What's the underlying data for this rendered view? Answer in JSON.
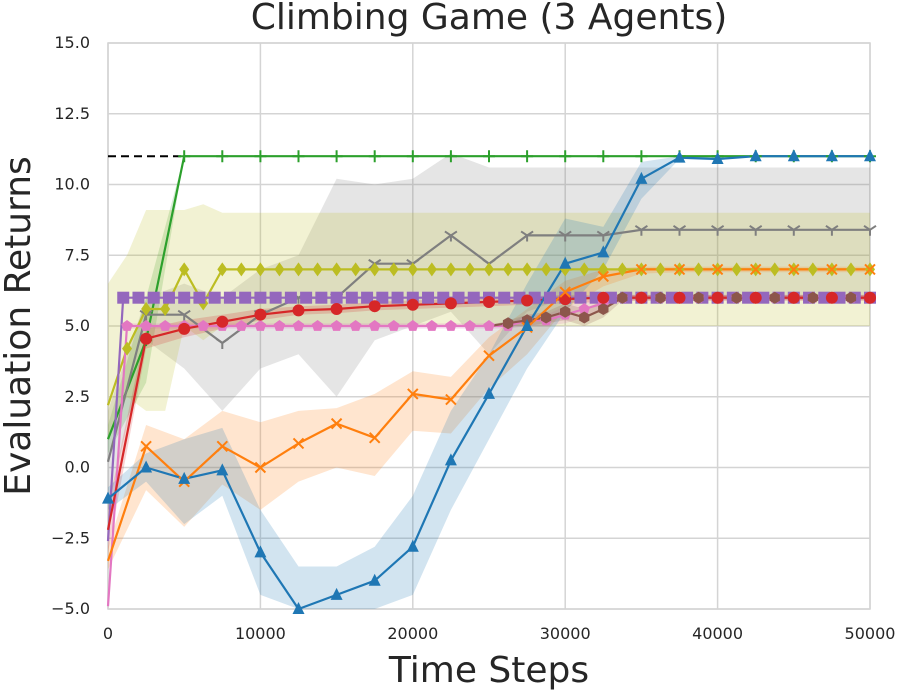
{
  "chart_data": {
    "type": "line",
    "title": "Climbing Game (3 Agents)",
    "xlabel": "Time Steps",
    "ylabel": "Evaluation Returns",
    "xlim": [
      0,
      50000
    ],
    "ylim": [
      -5,
      15
    ],
    "xticks": [
      "0",
      "10000",
      "20000",
      "30000",
      "40000",
      "50000"
    ],
    "yticks": [
      "−5.0",
      "−2.5",
      "0.0",
      "2.5",
      "5.0",
      "7.5",
      "10.0",
      "12.5",
      "15.0"
    ],
    "grid": true,
    "reference_line": {
      "y": 11.0,
      "x": [
        0,
        5000
      ],
      "style": "dashed",
      "color": "#000000"
    },
    "series": [
      {
        "color": "#2ca02c",
        "marker": "plus",
        "x": [
          0,
          2500,
          5000,
          7500,
          10000,
          12500,
          15000,
          17500,
          20000,
          22500,
          25000,
          27500,
          30000,
          32500,
          35000,
          37500,
          40000,
          42500,
          45000,
          47500,
          50000
        ],
        "y": [
          1.0,
          4.5,
          11.0,
          11.0,
          11.0,
          11.0,
          11.0,
          11.0,
          11.0,
          11.0,
          11.0,
          11.0,
          11.0,
          11.0,
          11.0,
          11.0,
          11.0,
          11.0,
          11.0,
          11.0,
          11.0
        ],
        "lower": [
          0.5,
          3.0,
          11.0,
          11.0,
          11.0,
          11.0,
          11.0,
          11.0,
          11.0,
          11.0,
          11.0,
          11.0,
          11.0,
          11.0,
          11.0,
          11.0,
          11.0,
          11.0,
          11.0,
          11.0,
          11.0
        ],
        "upper": [
          1.5,
          6.0,
          11.0,
          11.0,
          11.0,
          11.0,
          11.0,
          11.0,
          11.0,
          11.0,
          11.0,
          11.0,
          11.0,
          11.0,
          11.0,
          11.0,
          11.0,
          11.0,
          11.0,
          11.0,
          11.0
        ]
      },
      {
        "color": "#7f7f7f",
        "marker": "tri_down",
        "x": [
          0,
          2500,
          5000,
          7500,
          10000,
          12500,
          15000,
          17500,
          20000,
          22500,
          25000,
          27500,
          30000,
          32500,
          35000,
          37500,
          40000,
          42500,
          45000,
          47500,
          50000
        ],
        "y": [
          0.2,
          5.4,
          5.4,
          4.4,
          5.4,
          6.0,
          6.0,
          7.2,
          7.2,
          8.2,
          7.2,
          8.2,
          8.2,
          8.2,
          8.4,
          8.4,
          8.4,
          8.4,
          8.4,
          8.4,
          8.4
        ],
        "lower": [
          -1.5,
          4.5,
          3.5,
          2.0,
          3.5,
          4.0,
          2.5,
          4.5,
          5.0,
          5.5,
          4.0,
          5.5,
          6.0,
          6.0,
          6.0,
          6.0,
          6.0,
          6.0,
          6.0,
          6.0,
          6.0
        ],
        "upper": [
          2.0,
          6.0,
          6.5,
          6.0,
          7.0,
          7.5,
          10.2,
          10.0,
          10.2,
          11.1,
          10.6,
          10.6,
          10.6,
          10.6,
          10.6,
          10.6,
          10.6,
          10.6,
          10.6,
          10.6,
          10.6
        ]
      },
      {
        "color": "#bcbd22",
        "marker": "diamond",
        "x": [
          0,
          1250,
          2500,
          3750,
          5000,
          6250,
          7500,
          8750,
          10000,
          11250,
          12500,
          13750,
          15000,
          16250,
          17500,
          18750,
          20000,
          21250,
          22500,
          23750,
          25000,
          26250,
          27500,
          28750,
          30000,
          31250,
          32500,
          33750,
          35000,
          36250,
          37500,
          38750,
          40000,
          41250,
          42500,
          43750,
          45000,
          46250,
          47500,
          48750,
          50000
        ],
        "y": [
          2.2,
          4.2,
          5.6,
          5.6,
          7.0,
          5.8,
          7.0,
          7.0,
          7.0,
          7.0,
          7.0,
          7.0,
          7.0,
          7.0,
          7.0,
          7.0,
          7.0,
          7.0,
          7.0,
          7.0,
          7.0,
          7.0,
          7.0,
          7.0,
          7.0,
          7.0,
          7.0,
          7.0,
          7.0,
          7.0,
          7.0,
          7.0,
          7.0,
          7.0,
          7.0,
          7.0,
          7.0,
          7.0,
          7.0,
          7.0,
          7.0
        ],
        "lower": [
          1.0,
          2.5,
          2.0,
          2.0,
          5.0,
          4.5,
          5.0,
          5.0,
          5.0,
          5.0,
          5.0,
          5.0,
          5.0,
          5.0,
          5.0,
          5.0,
          5.0,
          5.0,
          5.0,
          5.0,
          5.0,
          5.0,
          5.0,
          5.0,
          5.0,
          5.0,
          5.0,
          5.0,
          5.0,
          5.0,
          5.0,
          5.0,
          5.0,
          5.0,
          5.0,
          5.0,
          5.0,
          5.0,
          5.0,
          5.0,
          5.0
        ],
        "upper": [
          6.5,
          7.5,
          9.1,
          9.1,
          9.1,
          9.3,
          9.0,
          9.0,
          9.0,
          9.0,
          9.0,
          9.0,
          9.0,
          9.0,
          9.0,
          9.0,
          9.0,
          9.0,
          9.0,
          9.0,
          9.0,
          9.0,
          9.0,
          9.0,
          9.0,
          9.0,
          9.0,
          9.0,
          9.0,
          9.0,
          9.0,
          9.0,
          9.0,
          9.0,
          9.0,
          9.0,
          9.0,
          9.0,
          9.0,
          9.0,
          9.0
        ]
      },
      {
        "color": "#9467bd",
        "marker": "square",
        "x": [
          0,
          1000,
          2000,
          3000,
          4000,
          5000,
          6000,
          7000,
          8000,
          9000,
          10000,
          11000,
          12000,
          13000,
          14000,
          15000,
          16000,
          17000,
          18000,
          19000,
          20000,
          21000,
          22000,
          23000,
          24000,
          25000,
          26000,
          27000,
          28000,
          29000,
          30000,
          31000,
          32000,
          33000,
          34000,
          35000,
          36000,
          37000,
          38000,
          39000,
          40000,
          41000,
          42000,
          43000,
          44000,
          45000,
          46000,
          47000,
          48000,
          49000,
          50000
        ],
        "y": [
          -2.6,
          6.0,
          6.0,
          6.0,
          6.0,
          6.0,
          6.0,
          6.0,
          6.0,
          6.0,
          6.0,
          6.0,
          6.0,
          6.0,
          6.0,
          6.0,
          6.0,
          6.0,
          6.0,
          6.0,
          6.0,
          6.0,
          6.0,
          6.0,
          6.0,
          6.0,
          6.0,
          6.0,
          6.0,
          6.0,
          6.0,
          6.0,
          6.0,
          6.0,
          6.0,
          6.0,
          6.0,
          6.0,
          6.0,
          6.0,
          6.0,
          6.0,
          6.0,
          6.0,
          6.0,
          6.0,
          6.0,
          6.0,
          6.0,
          6.0,
          6.0
        ],
        "lower": [
          -2.6,
          6.0,
          6.0,
          6.0,
          6.0,
          6.0,
          6.0,
          6.0,
          6.0,
          6.0,
          6.0,
          6.0,
          6.0,
          6.0,
          6.0,
          6.0,
          6.0,
          6.0,
          6.0,
          6.0,
          6.0,
          6.0,
          6.0,
          6.0,
          6.0,
          6.0,
          6.0,
          6.0,
          6.0,
          6.0,
          6.0,
          6.0,
          6.0,
          6.0,
          6.0,
          6.0,
          6.0,
          6.0,
          6.0,
          6.0,
          6.0,
          6.0,
          6.0,
          6.0,
          6.0,
          6.0,
          6.0,
          6.0,
          6.0,
          6.0,
          6.0
        ],
        "upper": [
          -2.6,
          6.0,
          6.0,
          6.0,
          6.0,
          6.0,
          6.0,
          6.0,
          6.0,
          6.0,
          6.0,
          6.0,
          6.0,
          6.0,
          6.0,
          6.0,
          6.0,
          6.0,
          6.0,
          6.0,
          6.0,
          6.0,
          6.0,
          6.0,
          6.0,
          6.0,
          6.0,
          6.0,
          6.0,
          6.0,
          6.0,
          6.0,
          6.0,
          6.0,
          6.0,
          6.0,
          6.0,
          6.0,
          6.0,
          6.0,
          6.0,
          6.0,
          6.0,
          6.0,
          6.0,
          6.0,
          6.0,
          6.0,
          6.0,
          6.0,
          6.0
        ]
      },
      {
        "color": "#e377c2",
        "marker": "pentagon",
        "x": [
          0,
          1250,
          2500,
          3750,
          5000,
          6250,
          7500,
          8750,
          10000,
          11250,
          12500,
          13750,
          15000,
          16250,
          17500,
          18750,
          20000,
          21250,
          22500,
          23750,
          25000,
          26250,
          27500,
          28750,
          30000,
          31250,
          32500,
          33750,
          35000,
          36250,
          37500,
          38750,
          40000,
          41250,
          42500,
          43750,
          45000,
          46250,
          47500,
          48750,
          50000
        ],
        "y": [
          -4.9,
          5.0,
          5.0,
          5.0,
          5.0,
          5.0,
          5.0,
          5.0,
          5.0,
          5.0,
          5.0,
          5.0,
          5.0,
          5.0,
          5.0,
          5.0,
          5.0,
          5.0,
          5.0,
          5.0,
          5.0,
          5.0,
          5.2,
          5.2,
          5.4,
          5.6,
          5.8,
          6.0,
          6.0,
          6.0,
          6.0,
          6.0,
          6.0,
          6.0,
          6.0,
          6.0,
          6.0,
          6.0,
          6.0,
          6.0,
          6.0
        ],
        "lower": [
          -5.0,
          4.9,
          4.9,
          4.9,
          4.9,
          4.9,
          4.9,
          4.9,
          4.9,
          4.9,
          4.9,
          4.9,
          4.9,
          4.9,
          4.9,
          4.9,
          4.9,
          4.9,
          4.9,
          4.9,
          4.9,
          4.9,
          5.0,
          5.0,
          5.1,
          5.3,
          5.6,
          5.9,
          5.9,
          5.9,
          5.9,
          5.9,
          5.9,
          5.9,
          5.9,
          5.9,
          5.9,
          5.9,
          5.9,
          5.9,
          5.9
        ],
        "upper": [
          -4.5,
          5.1,
          5.1,
          5.1,
          5.1,
          5.1,
          5.1,
          5.1,
          5.1,
          5.1,
          5.1,
          5.1,
          5.1,
          5.1,
          5.1,
          5.1,
          5.1,
          5.1,
          5.1,
          5.1,
          5.1,
          5.1,
          5.4,
          5.4,
          5.7,
          5.9,
          6.0,
          6.1,
          6.1,
          6.1,
          6.1,
          6.1,
          6.1,
          6.1,
          6.1,
          6.1,
          6.1,
          6.1,
          6.1,
          6.1,
          6.1
        ]
      },
      {
        "color": "#8c564b",
        "marker": "hexagon",
        "x": [
          25000,
          26250,
          27500,
          28750,
          30000,
          31250,
          32500,
          33750,
          35000,
          36250,
          37500,
          38750,
          40000,
          41250,
          42500,
          43750,
          45000,
          46250,
          47500,
          48750,
          50000
        ],
        "y": [
          5.0,
          5.1,
          5.2,
          5.3,
          5.5,
          5.3,
          5.6,
          6.0,
          6.0,
          6.0,
          6.0,
          6.0,
          6.0,
          6.0,
          6.0,
          6.0,
          6.0,
          6.0,
          6.0,
          6.0,
          6.0
        ],
        "lower": [
          5.0,
          5.0,
          5.0,
          5.1,
          5.2,
          5.0,
          5.3,
          5.9,
          5.9,
          5.9,
          5.9,
          5.9,
          5.9,
          5.9,
          5.9,
          5.9,
          5.9,
          5.9,
          5.9,
          5.9,
          5.9
        ],
        "upper": [
          5.0,
          5.2,
          5.4,
          5.5,
          5.8,
          5.6,
          5.9,
          6.1,
          6.1,
          6.1,
          6.1,
          6.1,
          6.1,
          6.1,
          6.1,
          6.1,
          6.1,
          6.1,
          6.1,
          6.1,
          6.1
        ]
      },
      {
        "color": "#d62728",
        "marker": "circle",
        "x": [
          0,
          2500,
          5000,
          7500,
          10000,
          12500,
          15000,
          17500,
          20000,
          22500,
          25000,
          27500,
          30000,
          32500,
          35000,
          37500,
          40000,
          42500,
          45000,
          47500,
          50000
        ],
        "y": [
          -2.2,
          4.55,
          4.9,
          5.15,
          5.4,
          5.55,
          5.6,
          5.7,
          5.75,
          5.8,
          5.85,
          5.9,
          5.95,
          6.0,
          6.0,
          6.0,
          6.0,
          6.0,
          6.0,
          6.0,
          6.0
        ],
        "lower": [
          -3.0,
          4.2,
          4.6,
          4.9,
          5.2,
          5.4,
          5.45,
          5.55,
          5.6,
          5.65,
          5.7,
          5.75,
          5.8,
          5.85,
          5.9,
          5.9,
          5.9,
          5.9,
          5.9,
          5.9,
          5.9
        ],
        "upper": [
          -1.4,
          4.9,
          5.2,
          5.4,
          5.6,
          5.7,
          5.75,
          5.85,
          5.9,
          5.95,
          6.0,
          6.05,
          6.1,
          6.1,
          6.1,
          6.1,
          6.1,
          6.1,
          6.1,
          6.1,
          6.1
        ]
      },
      {
        "color": "#ff7f0e",
        "marker": "x",
        "x": [
          0,
          2500,
          5000,
          7500,
          10000,
          12500,
          15000,
          17500,
          20000,
          22500,
          25000,
          27500,
          30000,
          32500,
          35000,
          37500,
          40000,
          42500,
          45000,
          47500,
          50000
        ],
        "y": [
          -3.3,
          0.75,
          -0.5,
          0.75,
          0.0,
          0.85,
          1.55,
          1.05,
          2.6,
          2.4,
          3.95,
          4.95,
          6.2,
          6.75,
          7.0,
          7.0,
          7.0,
          7.0,
          7.0,
          7.0,
          7.0
        ],
        "lower": [
          -3.6,
          -0.8,
          -2.1,
          -0.6,
          -1.5,
          -0.5,
          0.0,
          -0.3,
          1.3,
          1.2,
          2.8,
          4.0,
          5.6,
          6.4,
          6.85,
          6.9,
          6.9,
          6.9,
          6.9,
          6.9,
          6.9
        ],
        "upper": [
          -2.8,
          1.5,
          1.0,
          2.0,
          1.6,
          2.0,
          2.1,
          2.6,
          3.4,
          3.2,
          4.6,
          5.6,
          6.6,
          7.0,
          7.1,
          7.1,
          7.1,
          7.1,
          7.1,
          7.1,
          7.1
        ]
      },
      {
        "color": "#1f77b4",
        "marker": "triangle",
        "x": [
          0,
          2500,
          5000,
          7500,
          10000,
          12500,
          15000,
          17500,
          20000,
          22500,
          25000,
          27500,
          30000,
          32500,
          35000,
          37500,
          40000,
          42500,
          45000,
          47500,
          50000
        ],
        "y": [
          -1.1,
          0.0,
          -0.4,
          -0.1,
          -3.0,
          -5.0,
          -4.5,
          -4.0,
          -2.8,
          0.25,
          2.6,
          5.0,
          7.2,
          7.6,
          10.2,
          10.95,
          10.9,
          11.0,
          11.0,
          11.0,
          11.0
        ],
        "lower": [
          -1.5,
          -0.5,
          -2.0,
          -1.0,
          -4.5,
          -6.0,
          -6.0,
          -5.5,
          -4.5,
          -1.5,
          1.0,
          3.5,
          5.5,
          7.0,
          9.5,
          10.9,
          10.85,
          11.0,
          11.0,
          11.0,
          11.0
        ],
        "upper": [
          -0.7,
          0.5,
          1.0,
          1.4,
          -1.5,
          -3.5,
          -3.5,
          -2.8,
          -1.0,
          2.0,
          4.0,
          6.5,
          8.8,
          8.5,
          10.8,
          11.0,
          10.95,
          11.0,
          11.0,
          11.0,
          11.0
        ]
      }
    ]
  }
}
